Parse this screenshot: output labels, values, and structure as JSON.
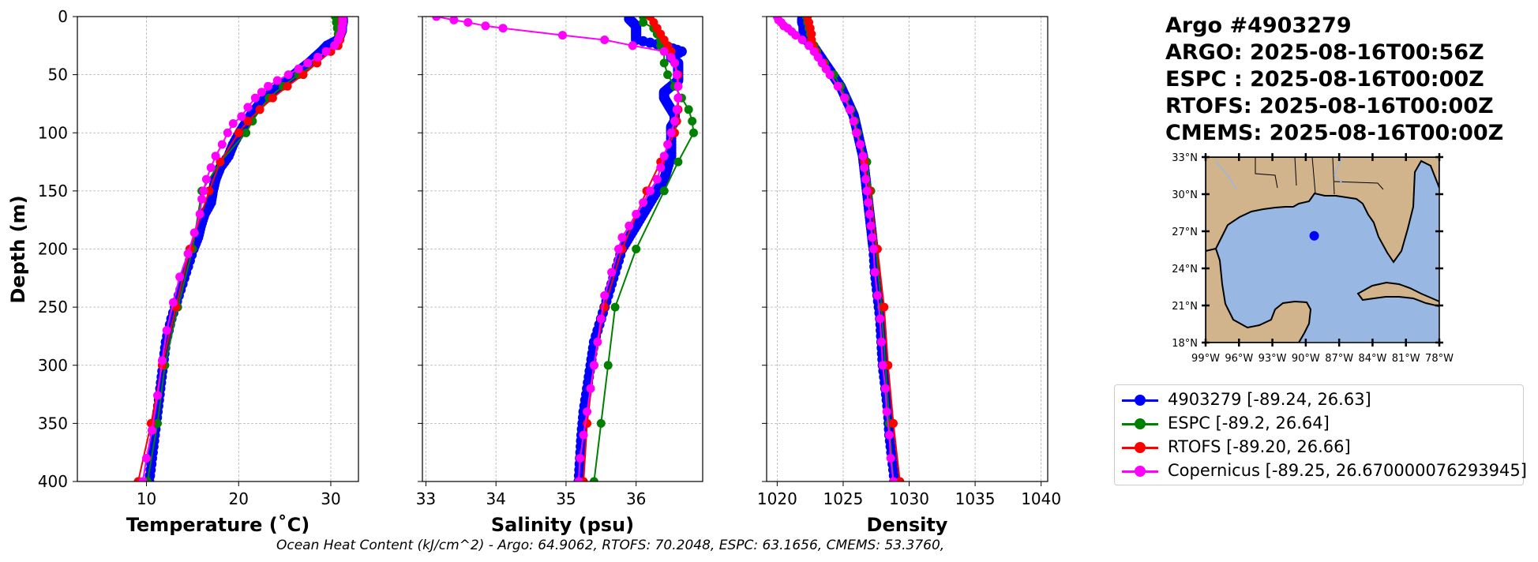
{
  "title": {
    "lines": [
      "Argo #4903279",
      "ARGO: 2025-08-16T00:56Z",
      "ESPC : 2025-08-16T00:00Z",
      "RTOFS: 2025-08-16T00:00Z",
      "CMEMS: 2025-08-16T00:00Z"
    ]
  },
  "footer": "Ocean Heat Content (kJ/cm^2) - Argo: 64.9062,  RTOFS: 70.2048,  ESPC: 63.1656,  CMEMS: 53.3760,",
  "colors": {
    "argo": "#0000ff",
    "espc": "#008000",
    "rtofs": "#ff0000",
    "copernicus": "#ff00ff"
  },
  "legend": [
    {
      "key": "argo",
      "label": "4903279 [-89.24, 26.63]"
    },
    {
      "key": "espc",
      "label": "ESPC [-89.2, 26.64]"
    },
    {
      "key": "rtofs",
      "label": "RTOFS [-89.20, 26.66]"
    },
    {
      "key": "copernicus",
      "label": "Copernicus [-89.25, 26.670000076293945]"
    }
  ],
  "chart_data": [
    {
      "type": "line",
      "id": "temperature",
      "xlabel": "Temperature (˚C)",
      "ylabel": "Depth (m)",
      "xlim": [
        2.5,
        33
      ],
      "ylim": [
        400,
        0
      ],
      "xticks": [
        10,
        20,
        30
      ],
      "yticks": [
        0,
        50,
        100,
        150,
        200,
        250,
        300,
        350,
        400
      ],
      "grid": true,
      "series": [
        {
          "name": "4903279",
          "key": "argo",
          "dense": true,
          "depth": [
            2,
            5,
            8,
            12,
            16,
            20,
            25,
            30,
            35,
            40,
            45,
            50,
            55,
            60,
            65,
            70,
            75,
            80,
            85,
            90,
            95,
            100,
            110,
            120,
            130,
            140,
            150,
            160,
            170,
            180,
            190,
            200,
            220,
            240,
            260,
            280,
            300,
            320,
            340,
            360,
            380,
            400
          ],
          "values": [
            31.3,
            31.3,
            31.2,
            31.2,
            31.0,
            30.8,
            29.6,
            29.0,
            28.3,
            27.6,
            26.8,
            26.0,
            25.2,
            24.4,
            23.6,
            22.9,
            22.3,
            21.8,
            21.3,
            20.9,
            20.5,
            20.1,
            19.4,
            18.9,
            18.0,
            17.5,
            17.2,
            17.0,
            16.3,
            15.9,
            15.6,
            15.1,
            14.3,
            13.5,
            12.7,
            12.1,
            11.8,
            11.5,
            11.2,
            10.9,
            10.6,
            10.3
          ]
        },
        {
          "name": "ESPC",
          "key": "espc",
          "depth": [
            0,
            5,
            10,
            15,
            20,
            25,
            30,
            40,
            50,
            60,
            70,
            80,
            90,
            100,
            125,
            150,
            200,
            250,
            300,
            350,
            400
          ],
          "values": [
            30.5,
            30.6,
            30.7,
            30.8,
            30.8,
            30.6,
            30.0,
            28.5,
            26.5,
            24.8,
            23.3,
            22.3,
            21.5,
            20.8,
            18.0,
            16.0,
            15.0,
            13.4,
            12.0,
            11.2,
            10.1
          ]
        },
        {
          "name": "RTOFS",
          "key": "rtofs",
          "depth": [
            0,
            5,
            10,
            15,
            20,
            25,
            30,
            40,
            50,
            60,
            70,
            80,
            90,
            100,
            125,
            150,
            200,
            250,
            300,
            350,
            400
          ],
          "values": [
            31.2,
            31.2,
            31.2,
            31.1,
            31.0,
            30.8,
            30.0,
            28.5,
            27.0,
            25.3,
            23.7,
            22.3,
            21.0,
            20.0,
            18.0,
            16.8,
            14.7,
            13.2,
            11.7,
            10.5,
            9.1
          ]
        },
        {
          "name": "Copernicus",
          "key": "copernicus",
          "depth": [
            0,
            3,
            6,
            9,
            12,
            16,
            20,
            25,
            30,
            35,
            40,
            45,
            50,
            55,
            60,
            65,
            70,
            78,
            86,
            92,
            100,
            110,
            120,
            130,
            140,
            150,
            157,
            170,
            186,
            204,
            224,
            246,
            270,
            296,
            326,
            356,
            380,
            400
          ],
          "values": [
            31.3,
            31.3,
            31.3,
            31.2,
            31.2,
            31.0,
            30.8,
            30.4,
            29.5,
            28.6,
            27.5,
            26.5,
            25.4,
            24.2,
            23.2,
            22.5,
            21.8,
            21.0,
            20.3,
            19.4,
            18.8,
            18.2,
            17.5,
            17.0,
            16.5,
            16.2,
            16.0,
            15.8,
            15.2,
            14.5,
            13.6,
            12.9,
            12.2,
            11.7,
            11.2,
            10.6,
            10.0,
            9.6
          ]
        }
      ]
    },
    {
      "type": "line",
      "id": "salinity",
      "xlabel": "Salinity (psu)",
      "xlim": [
        32.95,
        36.95
      ],
      "ylim": [
        400,
        0
      ],
      "xticks": [
        33,
        34,
        35,
        36
      ],
      "grid": true,
      "series": [
        {
          "name": "4903279",
          "key": "argo",
          "dense": true,
          "depth": [
            2,
            5,
            8,
            12,
            16,
            20,
            25,
            30,
            35,
            40,
            45,
            50,
            55,
            60,
            65,
            70,
            75,
            80,
            85,
            90,
            95,
            100,
            110,
            120,
            130,
            140,
            150,
            160,
            170,
            180,
            190,
            200,
            220,
            240,
            260,
            280,
            300,
            320,
            340,
            360,
            380,
            400
          ],
          "values": [
            35.9,
            35.95,
            36.0,
            36.0,
            36.0,
            36.0,
            36.4,
            36.65,
            36.5,
            36.6,
            36.6,
            36.6,
            36.6,
            36.5,
            36.4,
            36.4,
            36.45,
            36.5,
            36.55,
            36.55,
            36.5,
            36.5,
            36.5,
            36.5,
            36.45,
            36.4,
            36.3,
            36.2,
            36.1,
            36.0,
            35.9,
            35.8,
            35.7,
            35.6,
            35.5,
            35.4,
            35.35,
            35.3,
            35.25,
            35.22,
            35.2,
            35.18
          ]
        },
        {
          "name": "ESPC",
          "key": "espc",
          "depth": [
            0,
            5,
            10,
            15,
            20,
            25,
            30,
            40,
            50,
            60,
            70,
            80,
            90,
            100,
            125,
            150,
            200,
            250,
            300,
            350,
            400
          ],
          "values": [
            36.1,
            36.1,
            36.25,
            36.3,
            36.35,
            36.35,
            36.4,
            36.4,
            36.45,
            36.55,
            36.65,
            36.75,
            36.8,
            36.82,
            36.6,
            36.4,
            36.0,
            35.7,
            35.6,
            35.5,
            35.4
          ]
        },
        {
          "name": "RTOFS",
          "key": "rtofs",
          "depth": [
            0,
            5,
            10,
            15,
            20,
            25,
            30,
            40,
            50,
            60,
            70,
            80,
            90,
            100,
            125,
            150,
            200,
            250,
            300,
            350,
            400
          ],
          "values": [
            36.2,
            36.25,
            36.3,
            36.35,
            36.4,
            36.45,
            36.5,
            36.55,
            36.6,
            36.6,
            36.6,
            36.6,
            36.58,
            36.55,
            36.35,
            36.15,
            35.8,
            35.55,
            35.4,
            35.3,
            35.25
          ]
        },
        {
          "name": "Copernicus",
          "key": "copernicus",
          "depth": [
            0,
            3,
            5,
            8,
            10,
            16,
            20,
            25,
            30,
            35,
            40,
            50,
            60,
            70,
            80,
            90,
            100,
            110,
            120,
            130,
            140,
            150,
            160,
            170,
            180,
            190,
            200,
            220,
            240,
            260,
            280,
            300,
            320,
            340,
            360,
            380,
            400
          ],
          "values": [
            33.15,
            33.4,
            33.6,
            33.85,
            34.1,
            34.95,
            35.55,
            35.95,
            36.4,
            36.5,
            36.55,
            36.58,
            36.6,
            36.6,
            36.58,
            36.55,
            36.5,
            36.45,
            36.4,
            36.35,
            36.3,
            36.2,
            36.1,
            36.0,
            35.9,
            35.8,
            35.75,
            35.65,
            35.55,
            35.5,
            35.45,
            35.4,
            35.35,
            35.3,
            35.25,
            35.2,
            35.18
          ]
        }
      ]
    },
    {
      "type": "line",
      "id": "density",
      "xlabel": "Density",
      "xlim": [
        1019.2,
        1040.5
      ],
      "ylim": [
        400,
        0
      ],
      "xticks": [
        1020,
        1025,
        1030,
        1035,
        1040
      ],
      "grid": true,
      "series": [
        {
          "name": "4903279",
          "key": "argo",
          "dense": true,
          "depth": [
            2,
            5,
            8,
            12,
            16,
            20,
            25,
            30,
            35,
            40,
            45,
            50,
            55,
            60,
            65,
            70,
            75,
            80,
            85,
            90,
            95,
            100,
            110,
            120,
            130,
            140,
            150,
            160,
            170,
            180,
            190,
            200,
            220,
            240,
            260,
            280,
            300,
            320,
            340,
            360,
            380,
            400
          ],
          "values": [
            1021.9,
            1021.9,
            1022.0,
            1022.0,
            1022.1,
            1022.2,
            1022.7,
            1023.0,
            1023.3,
            1023.6,
            1023.9,
            1024.2,
            1024.5,
            1024.8,
            1025.0,
            1025.2,
            1025.4,
            1025.6,
            1025.8,
            1025.9,
            1026.0,
            1026.1,
            1026.3,
            1026.5,
            1026.6,
            1026.7,
            1026.8,
            1026.9,
            1027.0,
            1027.1,
            1027.2,
            1027.3,
            1027.4,
            1027.6,
            1027.8,
            1027.9,
            1028.0,
            1028.2,
            1028.4,
            1028.5,
            1028.7,
            1028.9
          ]
        },
        {
          "name": "ESPC",
          "key": "espc",
          "depth": [
            0,
            5,
            10,
            15,
            20,
            25,
            30,
            40,
            50,
            60,
            70,
            80,
            90,
            100,
            125,
            150,
            200,
            250,
            300,
            350,
            400
          ],
          "values": [
            1022.2,
            1022.3,
            1022.4,
            1022.5,
            1022.6,
            1022.8,
            1023.0,
            1023.6,
            1024.3,
            1024.8,
            1025.2,
            1025.6,
            1025.9,
            1026.1,
            1026.8,
            1027.1,
            1027.5,
            1027.9,
            1028.2,
            1028.5,
            1028.8
          ]
        },
        {
          "name": "RTOFS",
          "key": "rtofs",
          "depth": [
            0,
            5,
            10,
            15,
            20,
            25,
            30,
            40,
            50,
            60,
            70,
            80,
            90,
            100,
            125,
            150,
            200,
            250,
            300,
            350,
            400
          ],
          "values": [
            1022.3,
            1022.4,
            1022.5,
            1022.6,
            1022.6,
            1022.7,
            1022.9,
            1023.5,
            1024.0,
            1024.6,
            1025.1,
            1025.5,
            1025.8,
            1026.0,
            1026.6,
            1027.0,
            1027.6,
            1028.1,
            1028.4,
            1028.8,
            1029.3
          ]
        },
        {
          "name": "Copernicus",
          "key": "copernicus",
          "depth": [
            0,
            3,
            5,
            8,
            10,
            13,
            16,
            20,
            25,
            30,
            35,
            40,
            45,
            50,
            60,
            70,
            80,
            90,
            100,
            110,
            120,
            130,
            140,
            150,
            160,
            170,
            180,
            190,
            200,
            220,
            240,
            260,
            280,
            300,
            320,
            340,
            360,
            380,
            400
          ],
          "values": [
            1020.0,
            1020.1,
            1020.3,
            1020.5,
            1020.8,
            1021.1,
            1021.4,
            1021.9,
            1022.4,
            1022.8,
            1023.1,
            1023.4,
            1023.7,
            1024.0,
            1024.6,
            1025.1,
            1025.5,
            1025.8,
            1026.0,
            1026.3,
            1026.5,
            1026.6,
            1026.7,
            1026.8,
            1026.9,
            1027.0,
            1027.1,
            1027.2,
            1027.3,
            1027.4,
            1027.6,
            1027.8,
            1027.9,
            1028.0,
            1028.2,
            1028.3,
            1028.5,
            1028.6,
            1028.8
          ]
        }
      ]
    }
  ],
  "map": {
    "location": {
      "lon": -89.24,
      "lat": 26.63
    },
    "extent": {
      "lon": [
        -99,
        -78
      ],
      "lat": [
        18,
        33
      ]
    },
    "lon_ticks": [
      "99°W",
      "96°W",
      "93°W",
      "90°W",
      "87°W",
      "84°W",
      "81°W",
      "78°W"
    ],
    "lat_ticks": [
      "33°N",
      "30°N",
      "27°N",
      "24°N",
      "21°N",
      "18°N"
    ],
    "colors": {
      "land": "#d2b48c",
      "ocean": "#98b7e2"
    }
  }
}
